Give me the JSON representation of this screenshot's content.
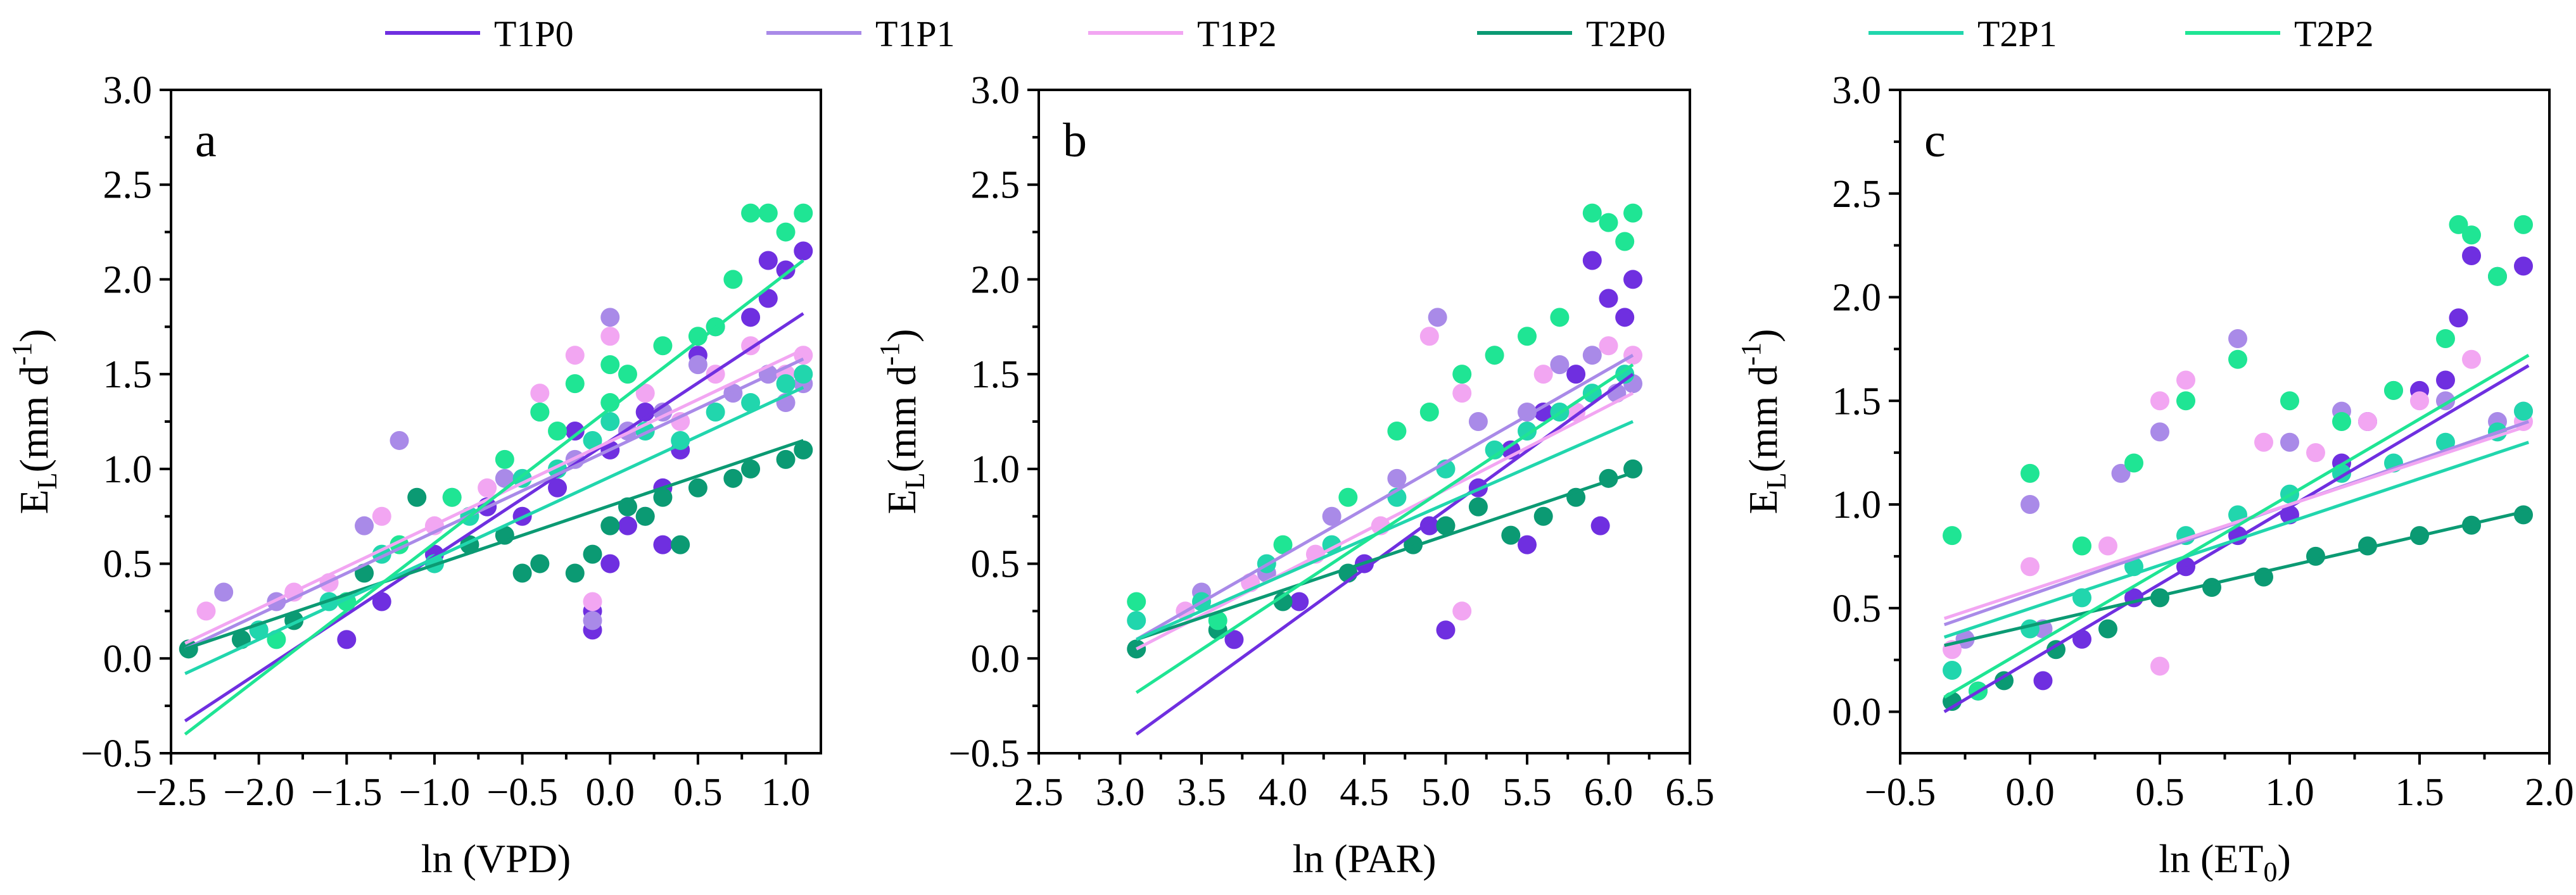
{
  "legend": [
    {
      "name": "T1P0",
      "color": "#6f2fe0"
    },
    {
      "name": "T1P1",
      "color": "#a98ae8"
    },
    {
      "name": "T1P2",
      "color": "#f2a6f2"
    },
    {
      "name": "T2P0",
      "color": "#0b9a73"
    },
    {
      "name": "T2P1",
      "color": "#21d6ad"
    },
    {
      "name": "T2P2",
      "color": "#1fe594"
    }
  ],
  "chart_data": [
    {
      "type": "scatter",
      "panel": "a",
      "xlabel": "ln (VPD)",
      "ylabel": "E_L (mm d-1)",
      "xlim": [
        -2.5,
        1.2
      ],
      "ylim": [
        -0.5,
        3.0
      ],
      "xticks": [
        -2.5,
        -2.0,
        -1.5,
        -1.0,
        -0.5,
        0.0,
        0.5,
        1.0
      ],
      "xtick_labels": [
        "−2.5",
        "−2.0",
        "−1.5",
        "−1.0",
        "−0.5",
        "0.0",
        "0.5",
        "1.0"
      ],
      "yticks": [
        -0.5,
        0.0,
        0.5,
        1.0,
        1.5,
        2.0,
        2.5,
        3.0
      ],
      "ytick_labels": [
        "−0.5",
        "0.0",
        "0.5",
        "1.0",
        "1.5",
        "2.0",
        "2.5",
        "3.0"
      ],
      "fit_lines": [
        {
          "name": "T1P0",
          "x": [
            -2.42,
            1.1
          ],
          "y": [
            -0.33,
            1.82
          ]
        },
        {
          "name": "T1P1",
          "x": [
            -2.42,
            1.1
          ],
          "y": [
            0.05,
            1.58
          ]
        },
        {
          "name": "T1P2",
          "x": [
            -2.42,
            1.1
          ],
          "y": [
            0.08,
            1.63
          ]
        },
        {
          "name": "T2P0",
          "x": [
            -2.42,
            1.1
          ],
          "y": [
            0.05,
            1.15
          ]
        },
        {
          "name": "T2P1",
          "x": [
            -2.42,
            1.1
          ],
          "y": [
            -0.08,
            1.43
          ]
        },
        {
          "name": "T2P2",
          "x": [
            -2.42,
            1.1
          ],
          "y": [
            -0.4,
            2.1
          ]
        }
      ],
      "series": [
        {
          "name": "T1P0",
          "x": [
            -2.0,
            -1.5,
            -1.3,
            -1.0,
            -0.7,
            -0.5,
            -0.3,
            -0.2,
            -0.1,
            0.0,
            0.0,
            0.1,
            0.2,
            0.3,
            0.4,
            0.5,
            0.6,
            0.8,
            0.9,
            1.0,
            1.1,
            -0.1,
            0.3,
            0.9
          ],
          "y": [
            0.15,
            0.1,
            0.3,
            0.55,
            0.8,
            0.75,
            0.9,
            1.2,
            0.15,
            0.5,
            1.1,
            0.7,
            1.3,
            0.9,
            1.1,
            1.6,
            1.75,
            1.8,
            2.1,
            2.05,
            2.15,
            0.25,
            0.6,
            1.9
          ]
        },
        {
          "name": "T1P1",
          "x": [
            -2.2,
            -1.9,
            -1.4,
            -1.2,
            -0.9,
            -0.6,
            -0.4,
            -0.2,
            0.0,
            0.1,
            0.3,
            0.5,
            0.7,
            0.9,
            1.0,
            1.1,
            -0.1,
            0.2
          ],
          "y": [
            0.35,
            0.3,
            0.7,
            1.15,
            0.85,
            0.95,
            1.3,
            1.05,
            1.8,
            1.2,
            1.3,
            1.55,
            1.4,
            1.5,
            1.35,
            1.45,
            0.2,
            0.75
          ]
        },
        {
          "name": "T1P2",
          "x": [
            -2.3,
            -1.8,
            -1.6,
            -1.3,
            -1.0,
            -0.7,
            -0.4,
            -0.2,
            0.0,
            0.2,
            0.4,
            0.6,
            0.8,
            1.0,
            1.1,
            -0.1
          ],
          "y": [
            0.25,
            0.35,
            0.4,
            0.75,
            0.7,
            0.9,
            1.4,
            1.6,
            1.7,
            1.4,
            1.25,
            1.5,
            1.65,
            1.5,
            1.6,
            0.3
          ]
        },
        {
          "name": "T2P0",
          "x": [
            -2.4,
            -2.1,
            -1.8,
            -1.4,
            -1.1,
            -0.8,
            -0.6,
            -0.4,
            -0.2,
            -0.1,
            0.0,
            0.1,
            0.2,
            0.3,
            0.5,
            0.7,
            0.8,
            1.0,
            1.1,
            -0.5,
            0.4
          ],
          "y": [
            0.05,
            0.1,
            0.2,
            0.45,
            0.85,
            0.6,
            0.65,
            0.5,
            0.45,
            0.55,
            0.7,
            0.8,
            0.75,
            0.85,
            0.9,
            0.95,
            1.0,
            1.05,
            1.1,
            0.45,
            0.6
          ]
        },
        {
          "name": "T2P1",
          "x": [
            -2.0,
            -1.6,
            -1.3,
            -1.0,
            -0.8,
            -0.5,
            -0.3,
            -0.1,
            0.0,
            0.2,
            0.4,
            0.6,
            0.8,
            1.0,
            1.1
          ],
          "y": [
            0.15,
            0.3,
            0.55,
            0.5,
            0.75,
            0.95,
            1.0,
            1.15,
            1.25,
            1.2,
            1.15,
            1.3,
            1.35,
            1.45,
            1.5
          ]
        },
        {
          "name": "T2P2",
          "x": [
            -1.9,
            -1.5,
            -1.2,
            -0.9,
            -0.6,
            -0.4,
            -0.2,
            0.0,
            0.1,
            0.3,
            0.5,
            0.6,
            0.7,
            0.8,
            0.9,
            1.0,
            1.1,
            -0.3,
            0.0
          ],
          "y": [
            0.1,
            0.3,
            0.6,
            0.85,
            1.05,
            1.3,
            1.45,
            1.55,
            1.5,
            1.65,
            1.7,
            1.75,
            2.0,
            2.35,
            2.35,
            2.25,
            2.35,
            1.2,
            1.35
          ]
        }
      ]
    },
    {
      "type": "scatter",
      "panel": "b",
      "xlabel": "ln (PAR)",
      "ylabel": "E_L (mm d-1)",
      "xlim": [
        2.5,
        6.5
      ],
      "ylim": [
        -0.5,
        3.0
      ],
      "xticks": [
        2.5,
        3.0,
        3.5,
        4.0,
        4.5,
        5.0,
        5.5,
        6.0,
        6.5
      ],
      "xtick_labels": [
        "2.5",
        "3.0",
        "3.5",
        "4.0",
        "4.5",
        "5.0",
        "5.5",
        "6.0",
        "6.5"
      ],
      "yticks": [
        -0.5,
        0.0,
        0.5,
        1.0,
        1.5,
        2.0,
        2.5,
        3.0
      ],
      "ytick_labels": [
        "−0.5",
        "0.0",
        "0.5",
        "1.0",
        "1.5",
        "2.0",
        "2.5",
        "3.0"
      ],
      "fit_lines": [
        {
          "name": "T1P0",
          "x": [
            3.1,
            6.15
          ],
          "y": [
            -0.4,
            1.5
          ]
        },
        {
          "name": "T1P1",
          "x": [
            3.1,
            6.15
          ],
          "y": [
            0.1,
            1.6
          ]
        },
        {
          "name": "T1P2",
          "x": [
            3.1,
            6.15
          ],
          "y": [
            0.05,
            1.4
          ]
        },
        {
          "name": "T2P0",
          "x": [
            3.1,
            6.15
          ],
          "y": [
            0.1,
            0.98
          ]
        },
        {
          "name": "T2P1",
          "x": [
            3.1,
            6.15
          ],
          "y": [
            0.1,
            1.25
          ]
        },
        {
          "name": "T2P2",
          "x": [
            3.1,
            6.15
          ],
          "y": [
            -0.18,
            1.55
          ]
        }
      ],
      "series": [
        {
          "name": "T1P0",
          "x": [
            3.7,
            4.1,
            4.5,
            4.9,
            5.0,
            5.2,
            5.4,
            5.5,
            5.6,
            5.8,
            5.9,
            6.0,
            6.1,
            6.15,
            5.95
          ],
          "y": [
            0.1,
            0.3,
            0.5,
            0.7,
            0.15,
            0.9,
            1.1,
            0.6,
            1.3,
            1.5,
            2.1,
            1.9,
            1.8,
            2.0,
            0.7
          ]
        },
        {
          "name": "T1P1",
          "x": [
            3.5,
            3.9,
            4.3,
            4.7,
            4.95,
            5.2,
            5.5,
            5.7,
            5.9,
            6.05,
            6.15
          ],
          "y": [
            0.35,
            0.45,
            0.75,
            0.95,
            1.8,
            1.25,
            1.3,
            1.55,
            1.6,
            1.4,
            1.45
          ]
        },
        {
          "name": "T1P2",
          "x": [
            3.4,
            3.8,
            4.2,
            4.6,
            4.9,
            5.1,
            5.3,
            5.6,
            5.8,
            6.0,
            6.15,
            5.1
          ],
          "y": [
            0.25,
            0.4,
            0.55,
            0.7,
            1.7,
            1.4,
            1.6,
            1.5,
            1.3,
            1.65,
            1.6,
            0.25
          ]
        },
        {
          "name": "T2P0",
          "x": [
            3.1,
            3.6,
            4.0,
            4.4,
            4.8,
            5.0,
            5.2,
            5.4,
            5.6,
            5.8,
            6.0,
            6.15
          ],
          "y": [
            0.05,
            0.15,
            0.3,
            0.45,
            0.6,
            0.7,
            0.8,
            0.65,
            0.75,
            0.85,
            0.95,
            1.0
          ]
        },
        {
          "name": "T2P1",
          "x": [
            3.1,
            3.5,
            3.9,
            4.3,
            4.7,
            5.0,
            5.3,
            5.5,
            5.7,
            5.9,
            6.1
          ],
          "y": [
            0.2,
            0.3,
            0.5,
            0.6,
            0.85,
            1.0,
            1.1,
            1.2,
            1.3,
            1.4,
            1.5
          ]
        },
        {
          "name": "T2P2",
          "x": [
            3.1,
            3.6,
            4.0,
            4.4,
            4.7,
            4.9,
            5.1,
            5.3,
            5.5,
            5.7,
            5.9,
            6.0,
            6.1,
            6.15
          ],
          "y": [
            0.3,
            0.2,
            0.6,
            0.85,
            1.2,
            1.3,
            1.5,
            1.6,
            1.7,
            1.8,
            2.35,
            2.3,
            2.2,
            2.35
          ]
        }
      ]
    },
    {
      "type": "scatter",
      "panel": "c",
      "xlabel": "ln (ET0)",
      "ylabel": "E_L (mm d-1)",
      "xlim": [
        -0.5,
        2.0
      ],
      "ylim": [
        -0.2,
        3.0
      ],
      "xticks": [
        -0.5,
        0.0,
        0.5,
        1.0,
        1.5,
        2.0
      ],
      "xtick_labels": [
        "−0.5",
        "0.0",
        "0.5",
        "1.0",
        "1.5",
        "2.0"
      ],
      "yticks": [
        0.0,
        0.5,
        1.0,
        1.5,
        2.0,
        2.5,
        3.0
      ],
      "ytick_labels": [
        "0.0",
        "0.5",
        "1.0",
        "1.5",
        "2.0",
        "2.5",
        "3.0"
      ],
      "fit_lines": [
        {
          "name": "T1P0",
          "x": [
            -0.33,
            1.92
          ],
          "y": [
            0.0,
            1.67
          ]
        },
        {
          "name": "T1P1",
          "x": [
            -0.33,
            1.92
          ],
          "y": [
            0.42,
            1.4
          ]
        },
        {
          "name": "T1P2",
          "x": [
            -0.33,
            1.92
          ],
          "y": [
            0.45,
            1.38
          ]
        },
        {
          "name": "T2P0",
          "x": [
            -0.33,
            1.92
          ],
          "y": [
            0.32,
            0.97
          ]
        },
        {
          "name": "T2P1",
          "x": [
            -0.33,
            1.92
          ],
          "y": [
            0.36,
            1.3
          ]
        },
        {
          "name": "T2P2",
          "x": [
            -0.33,
            1.92
          ],
          "y": [
            0.07,
            1.72
          ]
        }
      ],
      "series": [
        {
          "name": "T1P0",
          "x": [
            -0.2,
            0.05,
            0.2,
            0.4,
            0.6,
            0.8,
            1.0,
            1.2,
            1.3,
            1.5,
            1.6,
            1.7,
            1.8,
            1.9,
            1.65
          ],
          "y": [
            0.1,
            0.15,
            0.35,
            0.55,
            0.7,
            0.85,
            0.95,
            1.2,
            1.4,
            1.55,
            1.6,
            2.2,
            2.1,
            2.15,
            1.9
          ]
        },
        {
          "name": "T1P1",
          "x": [
            -0.25,
            0.05,
            0.35,
            0.5,
            0.8,
            1.0,
            1.2,
            1.4,
            1.6,
            1.8,
            1.9,
            0.0
          ],
          "y": [
            0.35,
            0.4,
            1.15,
            1.35,
            1.8,
            1.3,
            1.45,
            1.55,
            1.5,
            1.4,
            1.45,
            1.0
          ]
        },
        {
          "name": "T1P2",
          "x": [
            -0.3,
            0.0,
            0.3,
            0.5,
            0.6,
            0.9,
            1.1,
            1.3,
            1.5,
            1.7,
            1.9,
            0.5
          ],
          "y": [
            0.3,
            0.7,
            0.8,
            1.5,
            1.6,
            1.3,
            1.25,
            1.4,
            1.5,
            1.7,
            1.4,
            0.22
          ]
        },
        {
          "name": "T2P0",
          "x": [
            -0.3,
            -0.1,
            0.1,
            0.3,
            0.5,
            0.7,
            0.9,
            1.1,
            1.3,
            1.5,
            1.7,
            1.9
          ],
          "y": [
            0.05,
            0.15,
            0.3,
            0.4,
            0.55,
            0.6,
            0.65,
            0.75,
            0.8,
            0.85,
            0.9,
            0.95
          ]
        },
        {
          "name": "T2P1",
          "x": [
            -0.3,
            0.0,
            0.2,
            0.4,
            0.6,
            0.8,
            1.0,
            1.2,
            1.4,
            1.6,
            1.8,
            1.9
          ],
          "y": [
            0.2,
            0.4,
            0.55,
            0.7,
            0.85,
            0.95,
            1.05,
            1.15,
            1.2,
            1.3,
            1.35,
            1.45
          ]
        },
        {
          "name": "T2P2",
          "x": [
            -0.3,
            -0.2,
            0.0,
            0.2,
            0.4,
            0.6,
            0.8,
            1.0,
            1.2,
            1.4,
            1.6,
            1.65,
            1.7,
            1.8,
            1.9
          ],
          "y": [
            0.85,
            0.1,
            1.15,
            0.8,
            1.2,
            1.5,
            1.7,
            1.5,
            1.4,
            1.55,
            1.8,
            2.35,
            2.3,
            2.1,
            2.35
          ]
        }
      ]
    }
  ]
}
